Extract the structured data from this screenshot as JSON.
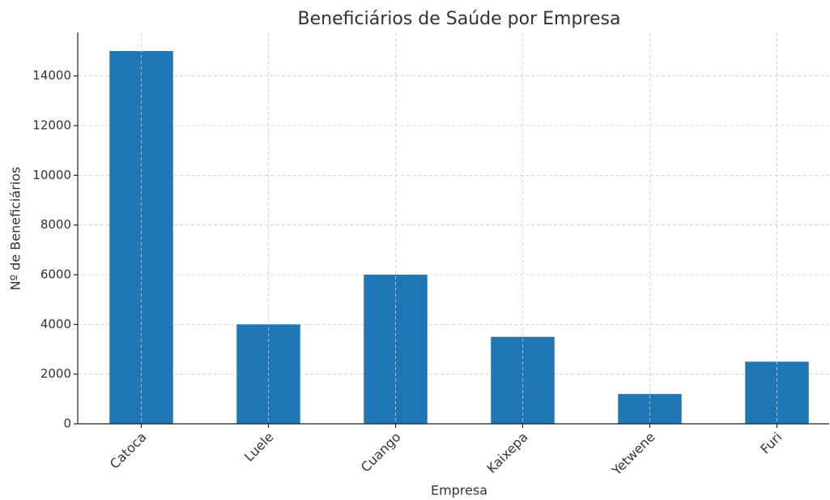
{
  "chart_data": {
    "type": "bar",
    "title": "Beneficiários de Saúde por Empresa",
    "x_label": "Empresa",
    "y_label": "Nº de Beneficiários",
    "categories": [
      "Catoca",
      "Luele",
      "Cuango",
      "Kaixepa",
      "Yetwene",
      "Furi"
    ],
    "values": [
      15000,
      4000,
      6000,
      3500,
      1200,
      2500
    ],
    "color": "#1f77b4",
    "ylim": [
      0,
      15750
    ],
    "yticks": [
      0,
      2000,
      4000,
      6000,
      8000,
      10000,
      12000,
      14000
    ],
    "grid": true
  }
}
